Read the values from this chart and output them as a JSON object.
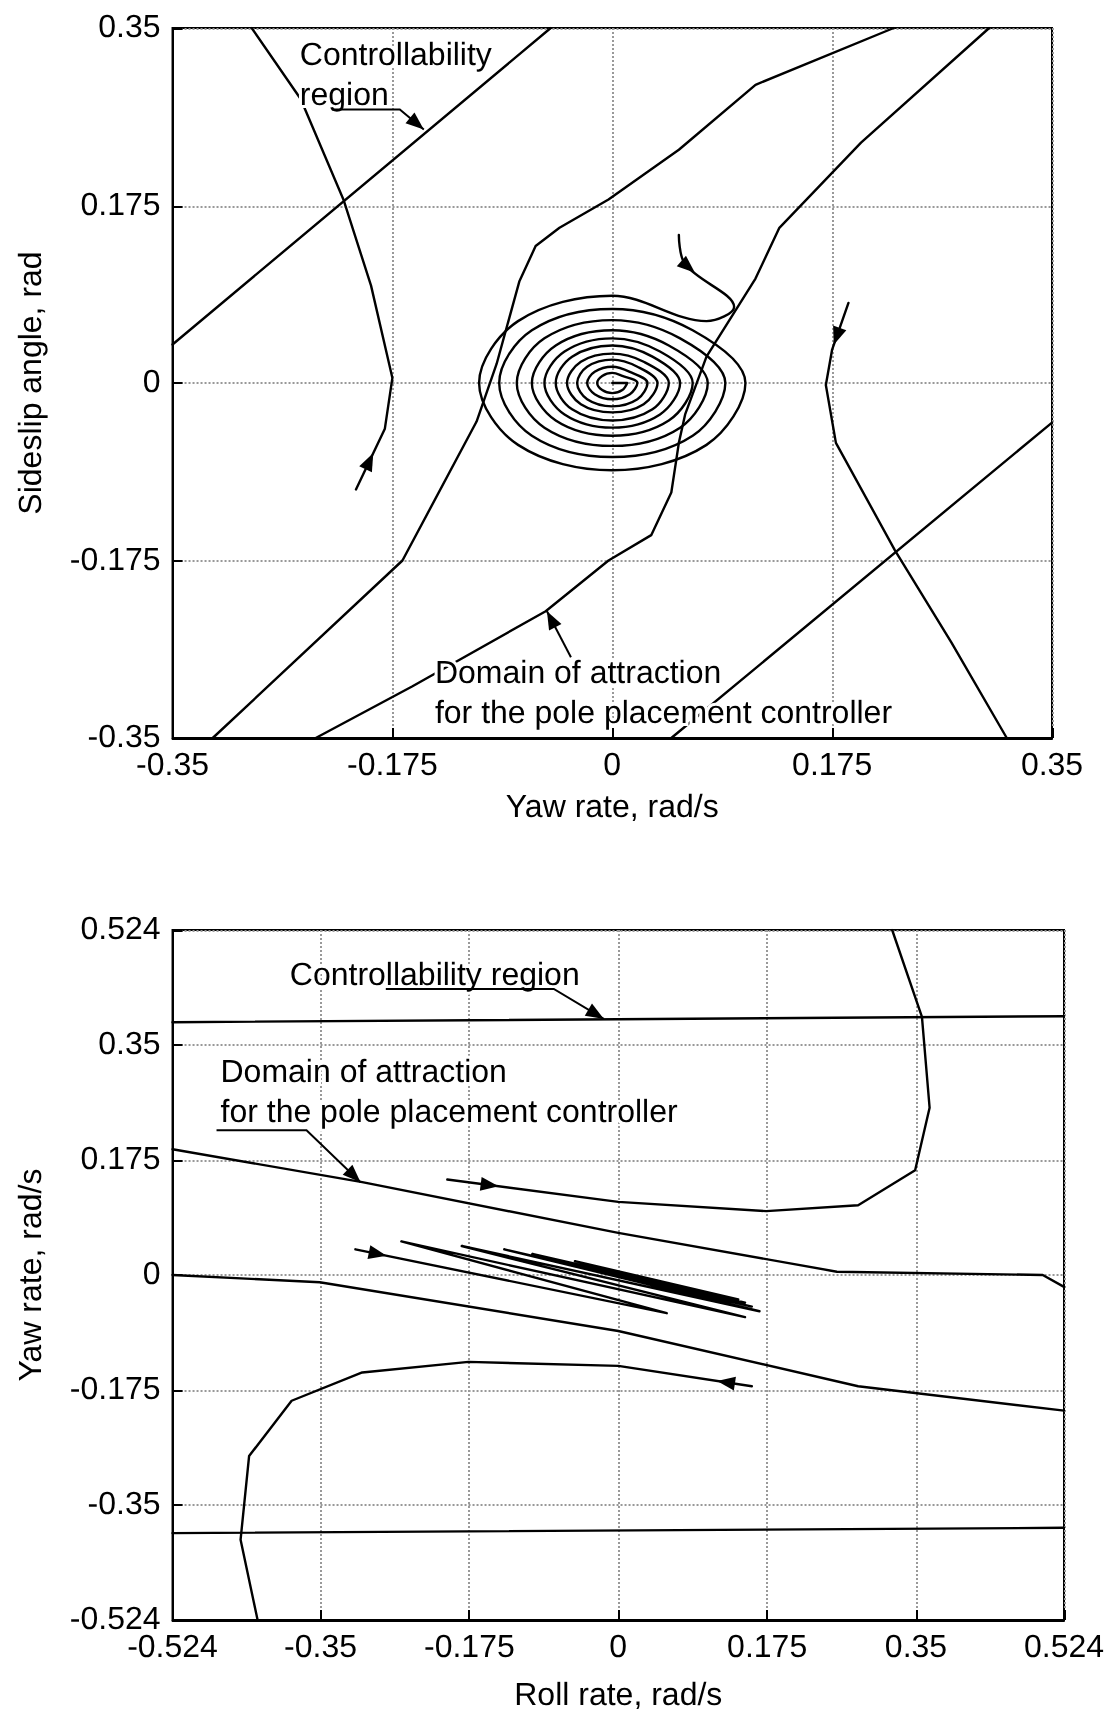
{
  "chart_data": [
    {
      "type": "line",
      "xlabel": "Yaw rate, rad/s",
      "ylabel": "Sideslip angle, rad",
      "xlim": [
        -0.35,
        0.35
      ],
      "ylim": [
        -0.35,
        0.35
      ],
      "xticks": [
        -0.35,
        -0.175,
        0,
        0.175,
        0.35
      ],
      "yticks": [
        -0.35,
        -0.175,
        0,
        0.175,
        0.35
      ],
      "grid": true,
      "marker": "none",
      "line_style": "solid",
      "annotations": [
        {
          "text": "Controllability\nregion",
          "x": -0.15,
          "y": 0.25
        },
        {
          "text": "Domain of attraction\nfor the pole placement controller",
          "x": -0.052,
          "y": -0.225
        }
      ],
      "series": [
        {
          "color": "#000000",
          "x": [
            -0.35,
            -0.049
          ],
          "values": [
            0.038,
            0.35
          ]
        },
        {
          "color": "#000000",
          "x": [
            0.047,
            0.35
          ],
          "values": [
            -0.35,
            -0.039
          ]
        },
        {
          "color": "#000000",
          "x": [
            -0.318,
            -0.167,
            -0.108,
            -0.092,
            -0.078,
            -0.074,
            -0.061,
            -0.042,
            -0.003,
            0.053,
            0.114,
            0.224
          ],
          "values": [
            -0.35,
            -0.175,
            -0.038,
            0.019,
            0.082,
            0.1,
            0.135,
            0.153,
            0.181,
            0.23,
            0.294,
            0.35
          ]
        },
        {
          "color": "#000000",
          "x": [
            -0.236,
            -0.159,
            -0.053,
            -0.003,
            0.031,
            0.047,
            0.053,
            0.058,
            0.075,
            0.114,
            0.133,
            0.198,
            0.3
          ],
          "values": [
            -0.35,
            -0.299,
            -0.225,
            -0.175,
            -0.15,
            -0.108,
            -0.059,
            -0.031,
            0.026,
            0.103,
            0.153,
            0.237,
            0.35
          ]
        },
        {
          "color": "#000000",
          "x": [
            -0.287,
            -0.248,
            -0.214,
            -0.192,
            -0.175,
            -0.181,
            -0.204
          ],
          "values": [
            0.35,
            0.28,
            0.181,
            0.096,
            0.005,
            -0.045,
            -0.105
          ]
        },
        {
          "color": "#000000",
          "x": [
            0.188,
            0.175,
            0.17,
            0.178,
            0.225,
            0.27,
            0.314
          ],
          "values": [
            0.079,
            0.033,
            -0.002,
            -0.059,
            -0.165,
            -0.256,
            -0.35
          ]
        },
        {
          "color": "#000000",
          "x": [
            0.053,
            0.058,
            0.097,
            0.075,
            0,
            -0.075,
            -0.106,
            -0.075,
            0,
            0.075,
            0.106,
            0.064,
            0,
            -0.064,
            -0.09,
            -0.064,
            0,
            0.064,
            0.09,
            0.054,
            0,
            -0.054,
            -0.076,
            -0.054,
            0,
            0.054,
            0.076,
            0.045,
            0,
            -0.045,
            -0.064,
            -0.045,
            0,
            0.045,
            0.064,
            0.038,
            0,
            -0.038,
            -0.054,
            -0.038,
            0,
            0.038,
            0.054,
            0.032,
            0,
            -0.032,
            -0.045,
            -0.032,
            0,
            0.032,
            0.045,
            0.025,
            0,
            -0.025,
            -0.036,
            -0.025,
            0,
            0.025,
            0.036,
            0.02,
            0,
            -0.02,
            -0.028,
            -0.02,
            0,
            0.02,
            0.028,
            0.014,
            0,
            -0.014,
            -0.02,
            -0.014,
            0,
            0.014,
            0.02,
            0.008,
            0,
            -0.008,
            -0.012,
            -0.008,
            0,
            0.008,
            0.012,
            0
          ],
          "values": [
            0.146,
            0.117,
            0.075,
            0.061,
            0.086,
            0.061,
            0,
            -0.061,
            -0.086,
            -0.061,
            0,
            0.052,
            0.073,
            0.052,
            0,
            -0.052,
            -0.073,
            -0.052,
            0,
            0.044,
            0.062,
            0.044,
            0,
            -0.044,
            -0.062,
            -0.044,
            0,
            0.037,
            0.052,
            0.037,
            0,
            -0.037,
            -0.052,
            -0.037,
            0,
            0.031,
            0.044,
            0.031,
            0,
            -0.031,
            -0.044,
            -0.031,
            0,
            0.026,
            0.037,
            0.026,
            0,
            -0.026,
            -0.037,
            -0.026,
            0,
            0.021,
            0.029,
            0.021,
            0,
            -0.021,
            -0.029,
            -0.021,
            0,
            0.016,
            0.023,
            0.016,
            0,
            -0.016,
            -0.023,
            -0.016,
            0,
            0.011,
            0.016,
            0.011,
            0,
            -0.011,
            -0.016,
            -0.011,
            0,
            0.007,
            0.01,
            0.007,
            0,
            -0.007,
            -0.01,
            -0.007,
            0,
            0
          ]
        }
      ]
    },
    {
      "type": "line",
      "xlabel": "Roll rate, rad/s",
      "ylabel": "Yaw rate, rad/s",
      "xlim": [
        -0.524,
        0.524
      ],
      "ylim": [
        -0.524,
        0.524
      ],
      "xticks": [
        -0.524,
        -0.35,
        -0.175,
        0,
        0.175,
        0.35,
        0.524
      ],
      "yticks": [
        -0.524,
        -0.35,
        -0.175,
        0,
        0.175,
        0.35,
        0.524
      ],
      "grid": true,
      "marker": "none",
      "line_style": "solid",
      "annotations": [
        {
          "text": "Controllability region",
          "x": -0.017,
          "y": 0.389
        },
        {
          "text": "Domain of attraction\nfor the pole placement controller",
          "x": -0.303,
          "y": 0.141
        }
      ],
      "series": [
        {
          "color": "#000000",
          "x": [
            -0.524,
            0.524
          ],
          "values": [
            0.384,
            0.393
          ]
        },
        {
          "color": "#000000",
          "x": [
            -0.524,
            0.524
          ],
          "values": [
            -0.392,
            -0.384
          ]
        },
        {
          "color": "#000000",
          "x": [
            -0.524,
            -0.301,
            0,
            0.257,
            0.499,
            0.524
          ],
          "values": [
            0.191,
            0.141,
            0.064,
            0.005,
            0,
            -0.018
          ]
        },
        {
          "color": "#000000",
          "x": [
            -0.524,
            -0.351,
            0,
            0.282,
            0.524
          ],
          "values": [
            0,
            -0.011,
            -0.085,
            -0.169,
            -0.206
          ]
        },
        {
          "color": "#000000",
          "x": [
            -0.201,
            0,
            0.174,
            0.282,
            0.349,
            0.366,
            0.357,
            0.322
          ],
          "values": [
            0.145,
            0.111,
            0.097,
            0.106,
            0.159,
            0.254,
            0.392,
            0.524
          ]
        },
        {
          "color": "#000000",
          "x": [
            0.157,
            0,
            -0.176,
            -0.301,
            -0.384,
            -0.434,
            -0.444,
            -0.424
          ],
          "values": [
            -0.169,
            -0.138,
            -0.132,
            -0.148,
            -0.191,
            -0.275,
            -0.402,
            -0.524
          ]
        },
        {
          "color": "#000000",
          "x": [
            -0.309,
            0.057,
            -0.255,
            0.149,
            -0.184,
            0.166,
            -0.134,
            0.157,
            -0.101,
            0.149,
            -0.051,
            0.141,
            0.032
          ],
          "values": [
            0.039,
            -0.058,
            0.051,
            -0.064,
            0.044,
            -0.055,
            0.039,
            -0.048,
            0.032,
            -0.042,
            0.021,
            -0.037,
            -0.005
          ]
        }
      ]
    }
  ]
}
